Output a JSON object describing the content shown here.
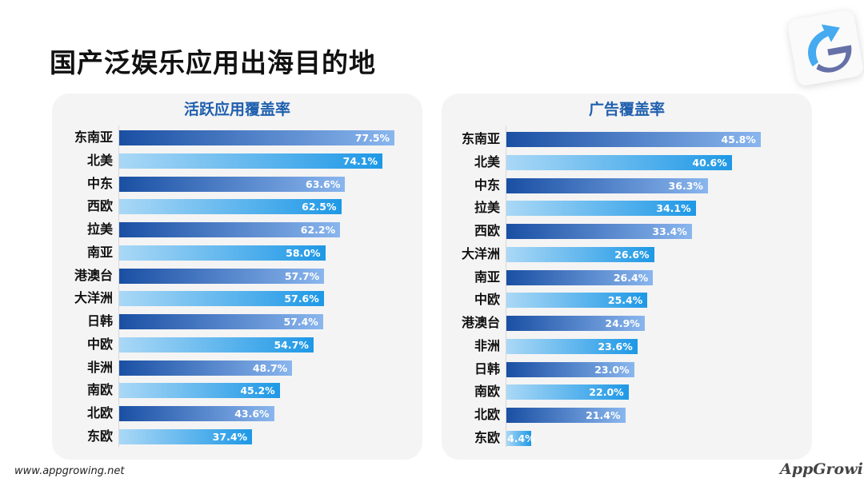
{
  "page_title": "国产泛娱乐应用出海目的地",
  "footer_url": "www.appgrowing.net",
  "brand": "AppGrowing",
  "colors": {
    "title_blue": "#1f5fae",
    "dark_bar_start": "#1a4fa3",
    "dark_bar_end": "#8ab6ee",
    "light_bar_start": "#aad8f6",
    "light_bar_end": "#1e98e6"
  },
  "chart_data": [
    {
      "type": "bar",
      "orientation": "horizontal",
      "title": "活跃应用覆盖率",
      "categories": [
        "东南亚",
        "北美",
        "中东",
        "西欧",
        "拉美",
        "南亚",
        "港澳台",
        "大洋洲",
        "日韩",
        "中欧",
        "非洲",
        "南欧",
        "北欧",
        "东欧"
      ],
      "values": [
        77.5,
        74.1,
        63.6,
        62.5,
        62.2,
        58.0,
        57.7,
        57.6,
        57.4,
        54.7,
        48.7,
        45.2,
        43.6,
        37.4
      ],
      "labels": [
        "77.5%",
        "74.1%",
        "63.6%",
        "62.5%",
        "62.2%",
        "58.0%",
        "57.7%",
        "57.6%",
        "57.4%",
        "54.7%",
        "48.7%",
        "45.2%",
        "43.6%",
        "37.4%"
      ],
      "unit": "%",
      "grid": false
    },
    {
      "type": "bar",
      "orientation": "horizontal",
      "title": "广告覆盖率",
      "categories": [
        "东南亚",
        "北美",
        "中东",
        "拉美",
        "西欧",
        "大洋洲",
        "南亚",
        "中欧",
        "港澳台",
        "非洲",
        "日韩",
        "南欧",
        "北欧",
        "东欧"
      ],
      "values": [
        45.8,
        40.6,
        36.3,
        34.1,
        33.4,
        26.6,
        26.4,
        25.4,
        24.9,
        23.6,
        23.0,
        22.0,
        21.4,
        4.4
      ],
      "labels": [
        "45.8%",
        "40.6%",
        "36.3%",
        "34.1%",
        "33.4%",
        "26.6%",
        "26.4%",
        "25.4%",
        "24.9%",
        "23.6%",
        "23.0%",
        "22.0%",
        "21.4%",
        "4.4%"
      ],
      "unit": "%",
      "grid": false
    }
  ]
}
